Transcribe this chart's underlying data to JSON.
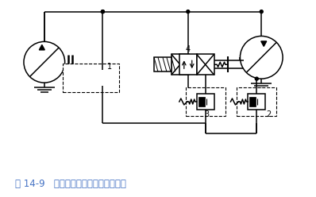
{
  "title": "图 14-9   用溢流阀的液压马达制动回路",
  "title_color": "#4472C4",
  "bg_color": "#ffffff",
  "fig_width": 3.98,
  "fig_height": 2.48,
  "dpi": 100
}
